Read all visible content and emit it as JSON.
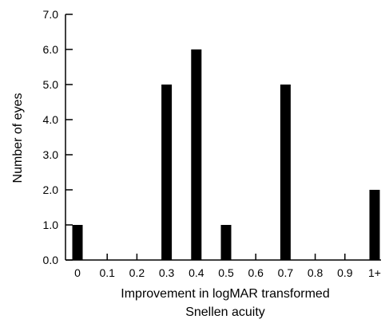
{
  "chart_data": {
    "type": "bar",
    "title": "",
    "categories": [
      "0",
      "0.1",
      "0.2",
      "0.3",
      "0.4",
      "0.5",
      "0.6",
      "0.7",
      "0.8",
      "0.9",
      "1+"
    ],
    "values": [
      1,
      0,
      0,
      5,
      6,
      1,
      0,
      5,
      0,
      0,
      2
    ],
    "xlabel_lines": [
      "Improvement in logMAR transformed",
      "Snellen acuity"
    ],
    "ylabel": "Number of eyes",
    "ylim": [
      0,
      7
    ],
    "yticks": [
      "0.0",
      "1.0",
      "2.0",
      "3.0",
      "4.0",
      "5.0",
      "6.0",
      "7.0"
    ],
    "grid": false,
    "legend": "none",
    "bar_color": "#000000"
  }
}
